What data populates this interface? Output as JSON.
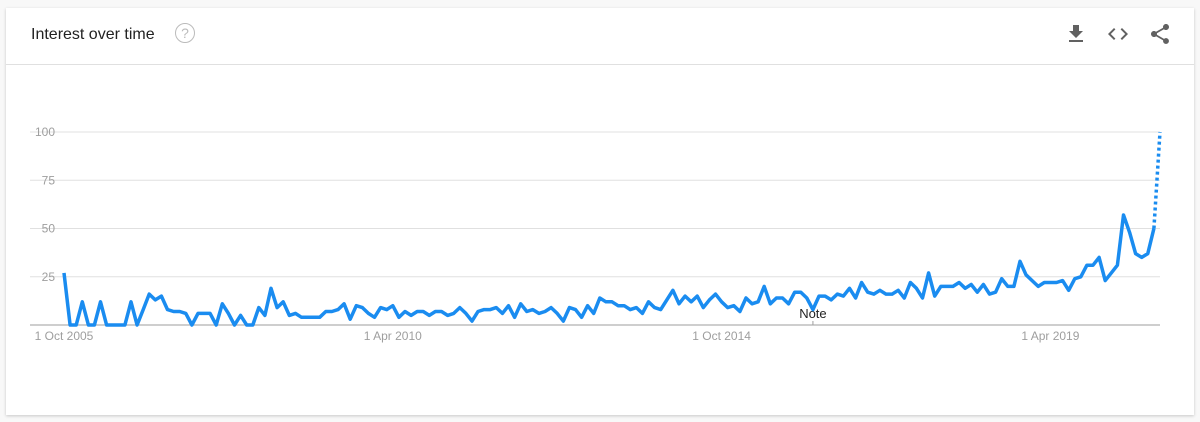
{
  "header": {
    "title": "Interest over time",
    "help_icon": "help-circle-icon",
    "actions": [
      "download-icon",
      "embed-code-icon",
      "share-icon"
    ]
  },
  "chart_data": {
    "type": "line",
    "title": "",
    "xlabel": "",
    "ylabel": "",
    "x_start": "Oct 2005",
    "x_end": "Oct 2020",
    "x_interval": "monthly",
    "ylim": [
      0,
      100
    ],
    "y_ticks": [
      "0",
      "25",
      "50",
      "75",
      "100"
    ],
    "y_tick_labels": [
      "25",
      "50",
      "75",
      "100"
    ],
    "x_tick_labels": [
      {
        "label": "1 Oct 2005",
        "month_index": 0
      },
      {
        "label": "1 Apr 2010",
        "month_index": 54
      },
      {
        "label": "1 Oct 2014",
        "month_index": 108
      },
      {
        "label": "1 Apr 2019",
        "month_index": 162
      }
    ],
    "annotation": {
      "label": "Note",
      "month_index": 123
    },
    "grid": true,
    "color": "#1a8cf0",
    "partial_last_point": true,
    "values": [
      27,
      0,
      0,
      12,
      0,
      0,
      12,
      0,
      0,
      0,
      0,
      12,
      0,
      8,
      16,
      13,
      15,
      8,
      7,
      7,
      6,
      0,
      6,
      6,
      6,
      0,
      11,
      6,
      0,
      5,
      0,
      0,
      9,
      5,
      19,
      9,
      12,
      5,
      6,
      4,
      4,
      4,
      4,
      7,
      7,
      8,
      11,
      3,
      10,
      9,
      6,
      4,
      9,
      8,
      10,
      4,
      7,
      5,
      7,
      7,
      5,
      7,
      7,
      5,
      6,
      9,
      6,
      2,
      7,
      8,
      8,
      9,
      6,
      10,
      4,
      11,
      7,
      8,
      6,
      7,
      9,
      6,
      2,
      9,
      8,
      4,
      10,
      6,
      14,
      12,
      12,
      10,
      10,
      8,
      9,
      6,
      12,
      9,
      8,
      13,
      18,
      11,
      15,
      12,
      15,
      9,
      13,
      16,
      12,
      9,
      10,
      7,
      14,
      11,
      12,
      20,
      11,
      14,
      14,
      11,
      17,
      17,
      14,
      8,
      15,
      15,
      13,
      16,
      15,
      19,
      14,
      22,
      17,
      16,
      18,
      16,
      16,
      18,
      14,
      22,
      19,
      14,
      27,
      15,
      20,
      20,
      20,
      22,
      19,
      21,
      17,
      21,
      16,
      17,
      24,
      20,
      20,
      33,
      26,
      23,
      20,
      22,
      22,
      22,
      23,
      18,
      24,
      25,
      31,
      31,
      35,
      23,
      27,
      31,
      57,
      48,
      37,
      35,
      37,
      50,
      100
    ]
  }
}
